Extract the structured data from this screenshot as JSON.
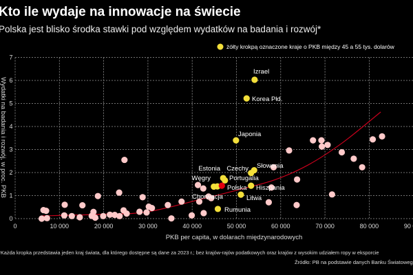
{
  "title": "Kto ile wydaje na innowacje na świecie",
  "subtitle": "Polska jest blisko środka stawki pod względem wydatków na badania i rozwój*",
  "note": "*Każda kropka przedstawia jeden kraj świata, dla którego dostępne są dane za 2023 r.; bez krajów-rajów podatkowych oraz krajów z wysokim udziałem ropy w eksporcie",
  "source": "Źródło: PB na podstawie danych Banku Światowego",
  "colors": {
    "background": "#000000",
    "other": "#ffc9c9",
    "highlight": "#f3df3a",
    "poland": "#e3000f",
    "trend": "#c8001c",
    "grid": "#9a9a9a"
  },
  "chart_data": {
    "type": "scatter",
    "xlabel": "PKB per capita, w dolarach międzynarodowych",
    "ylabel": "Wydatki na badania i rozwój, w proc. PKB",
    "xlim": [
      0,
      90000
    ],
    "ylim": [
      0,
      7
    ],
    "grid": true,
    "x_ticks": [
      "0",
      "10 000",
      "20 000",
      "30 000",
      "40 000",
      "50 000",
      "60 000",
      "70 000",
      "80 000",
      "90 000"
    ],
    "x_tick_values": [
      0,
      10000,
      20000,
      30000,
      40000,
      50000,
      60000,
      70000,
      80000,
      90000
    ],
    "y_ticks": [
      "0",
      "1",
      "2",
      "3",
      "4",
      "5",
      "6",
      "7"
    ],
    "y_tick_values": [
      0,
      1,
      2,
      3,
      4,
      5,
      6,
      7
    ],
    "legend": {
      "label": "żółty krokpą oznaczone kraje o PKB między 45 a 55 tys. dolarów",
      "placement": "top-right"
    },
    "points_other": [
      [
        6000,
        0.0
      ],
      [
        6400,
        0.37
      ],
      [
        7000,
        0.34
      ],
      [
        7200,
        0.02
      ],
      [
        11200,
        0.6
      ],
      [
        11100,
        0.14
      ],
      [
        12800,
        0.11
      ],
      [
        14600,
        0.06
      ],
      [
        15200,
        0.58
      ],
      [
        18700,
        0.98
      ],
      [
        17700,
        0.29
      ],
      [
        17300,
        0.12
      ],
      [
        18100,
        0.04
      ],
      [
        19900,
        0.11
      ],
      [
        21400,
        0.17
      ],
      [
        22500,
        0.16
      ],
      [
        23600,
        0.11
      ],
      [
        23500,
        1.13
      ],
      [
        24700,
        2.55
      ],
      [
        24500,
        0.36
      ],
      [
        25200,
        0.22
      ],
      [
        28100,
        0.3
      ],
      [
        28800,
        0.93
      ],
      [
        29700,
        0.27
      ],
      [
        30200,
        0.52
      ],
      [
        30900,
        0.46
      ],
      [
        34500,
        0.59
      ],
      [
        35300,
        0.01
      ],
      [
        37600,
        0.74
      ],
      [
        39900,
        0.14
      ],
      [
        41600,
        0.74
      ],
      [
        42600,
        0.24
      ],
      [
        41300,
        1.46
      ],
      [
        42500,
        1.31
      ],
      [
        43700,
        0.96
      ],
      [
        44300,
        0.89
      ],
      [
        58400,
        2.23
      ],
      [
        61900,
        2.96
      ],
      [
        63700,
        1.7
      ],
      [
        57900,
        1.35
      ],
      [
        57300,
        0.71
      ],
      [
        63600,
        0.59
      ],
      [
        67300,
        3.4
      ],
      [
        69200,
        3.4
      ],
      [
        69300,
        3.13
      ],
      [
        70600,
        3.2
      ],
      [
        73800,
        2.88
      ],
      [
        76500,
        2.6
      ],
      [
        78400,
        2.23
      ],
      [
        71600,
        1.05
      ],
      [
        80800,
        3.44
      ],
      [
        82900,
        3.57
      ]
    ],
    "points_highlight": [
      {
        "name": "Izrael",
        "x": 54100,
        "y": 6.03
      },
      {
        "name": "Korea Płd.",
        "x": 52300,
        "y": 5.22
      },
      {
        "name": "Japonia",
        "x": 49900,
        "y": 3.4
      },
      {
        "name": "Słowenia",
        "x": 54000,
        "y": 2.1
      },
      {
        "name": "Czechy",
        "x": 53300,
        "y": 1.98
      },
      {
        "name": "Estonia",
        "x": 47000,
        "y": 1.76
      },
      {
        "name": "Portugalia",
        "x": 47400,
        "y": 1.66
      },
      {
        "name": "Węgry",
        "x": 44900,
        "y": 1.39
      },
      {
        "name": "Chorwacja",
        "x": 45700,
        "y": 1.4
      },
      {
        "name": "Hiszpania",
        "x": 53300,
        "y": 1.43
      },
      {
        "name": "Litwa",
        "x": 51000,
        "y": 1.04
      },
      {
        "name": "Rumunia",
        "x": 45800,
        "y": 0.42
      }
    ],
    "point_poland": {
      "name": "Polska",
      "x": 46700,
      "y": 1.43
    },
    "trendline": [
      [
        6000,
        0.12
      ],
      [
        20000,
        0.19
      ],
      [
        30000,
        0.3
      ],
      [
        43200,
        0.9
      ],
      [
        50000,
        1.23
      ],
      [
        58600,
        1.68
      ],
      [
        66200,
        2.33
      ],
      [
        74000,
        3.3
      ],
      [
        82600,
        4.63
      ]
    ]
  }
}
